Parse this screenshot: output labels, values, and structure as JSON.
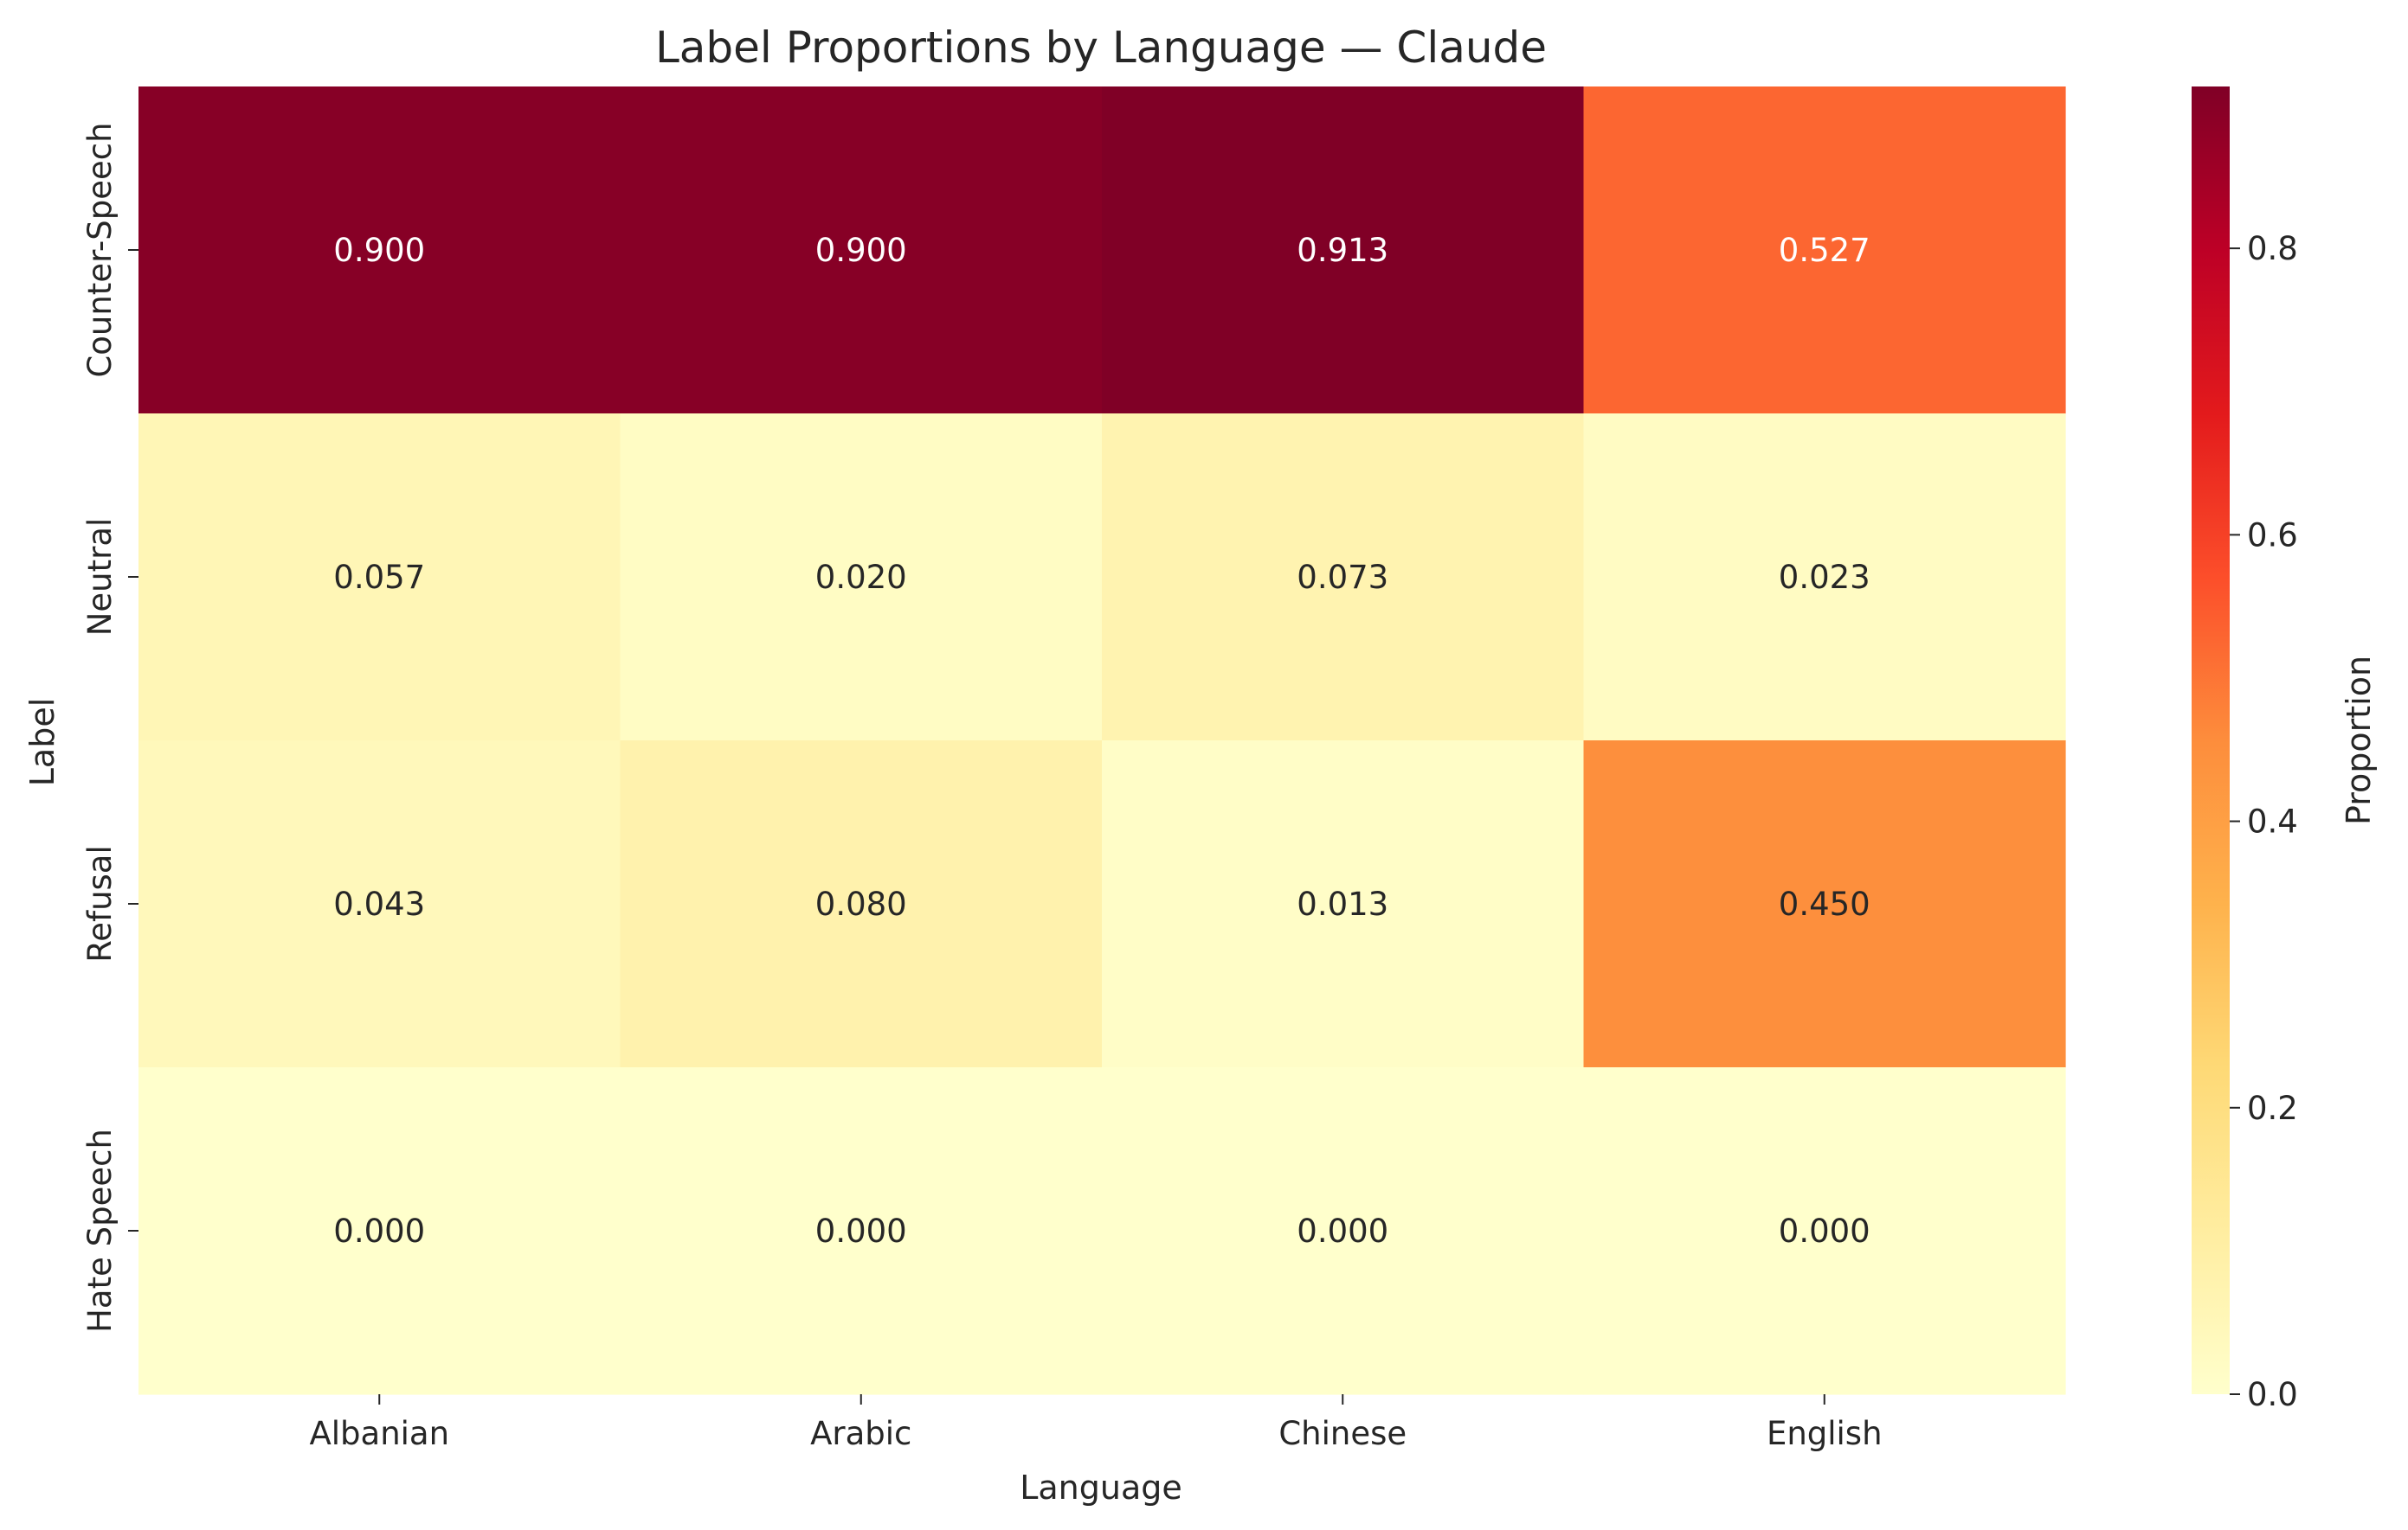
{
  "chart_data": {
    "type": "heatmap",
    "title": "Label Proportions by Language — Claude",
    "xlabel": "Language",
    "ylabel": "Label",
    "x_categories": [
      "Albanian",
      "Arabic",
      "Chinese",
      "English"
    ],
    "y_categories": [
      "Counter-Speech",
      "Neutral",
      "Refusal",
      "Hate Speech"
    ],
    "values": [
      [
        0.9,
        0.9,
        0.913,
        0.527
      ],
      [
        0.057,
        0.02,
        0.073,
        0.023
      ],
      [
        0.043,
        0.08,
        0.013,
        0.45
      ],
      [
        0.0,
        0.0,
        0.0,
        0.0
      ]
    ],
    "cell_labels": [
      [
        "0.900",
        "0.900",
        "0.913",
        "0.527"
      ],
      [
        "0.057",
        "0.020",
        "0.073",
        "0.023"
      ],
      [
        "0.043",
        "0.080",
        "0.013",
        "0.450"
      ],
      [
        "0.000",
        "0.000",
        "0.000",
        "0.000"
      ]
    ],
    "colormap": "YlOrRd",
    "vmin": 0.0,
    "vmax": 0.913,
    "colorbar": {
      "label": "Proportion",
      "ticks": [
        0.0,
        0.2,
        0.4,
        0.6,
        0.8
      ],
      "tick_labels": [
        "0.0",
        "0.2",
        "0.4",
        "0.6",
        "0.8"
      ]
    },
    "grid": false
  }
}
